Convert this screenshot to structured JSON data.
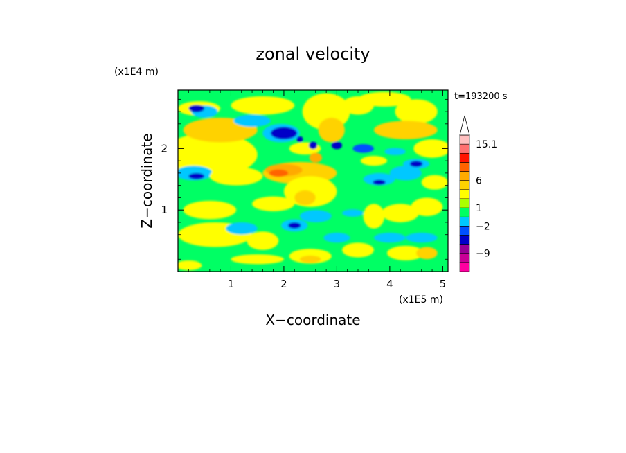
{
  "chart_data": {
    "type": "heatmap",
    "title": "zonal velocity",
    "xlabel": "X−coordinate",
    "ylabel": "Z−coordinate",
    "x_unit": "(x1E5 m)",
    "y_unit": "(x1E4 m)",
    "time_label": "t=193200 s",
    "xlim": [
      0,
      5.1
    ],
    "ylim": [
      0,
      2.95
    ],
    "x_ticks": [
      "1",
      "2",
      "3",
      "4",
      "5"
    ],
    "y_ticks": [
      "1",
      "2"
    ],
    "colorbar": {
      "tick_labels": [
        "15.1",
        "6",
        "1",
        "−2",
        "−9"
      ],
      "colors": [
        "#ff00a0",
        "#c80096",
        "#960096",
        "#0000c8",
        "#0050ff",
        "#00c8ff",
        "#00ff64",
        "#aaff00",
        "#ffff00",
        "#ffd200",
        "#ffaa00",
        "#ff6400",
        "#ff1400",
        "#ff7070",
        "#ffc0c0",
        "#ffffff"
      ],
      "extend": "max"
    },
    "fields": {
      "background": "#00ff64",
      "blobs": [
        {
          "x": 0.6,
          "y": 1.9,
          "rx": 0.9,
          "ry": 0.35,
          "c": "#ffff00"
        },
        {
          "x": 0.8,
          "y": 2.3,
          "rx": 0.7,
          "ry": 0.2,
          "c": "#ffd200"
        },
        {
          "x": 0.4,
          "y": 2.65,
          "rx": 0.4,
          "ry": 0.12,
          "c": "#ffff00"
        },
        {
          "x": 1.6,
          "y": 2.7,
          "rx": 0.6,
          "ry": 0.15,
          "c": "#ffff00"
        },
        {
          "x": 0.5,
          "y": 2.6,
          "rx": 0.25,
          "ry": 0.1,
          "c": "#00c8ff"
        },
        {
          "x": 0.35,
          "y": 2.65,
          "rx": 0.15,
          "ry": 0.06,
          "c": "#0000c8"
        },
        {
          "x": 0.3,
          "y": 1.6,
          "rx": 0.35,
          "ry": 0.12,
          "c": "#00c8ff"
        },
        {
          "x": 0.35,
          "y": 1.55,
          "rx": 0.15,
          "ry": 0.05,
          "c": "#0000c8"
        },
        {
          "x": 1.1,
          "y": 1.55,
          "rx": 0.5,
          "ry": 0.15,
          "c": "#ffff00"
        },
        {
          "x": 1.4,
          "y": 2.45,
          "rx": 0.35,
          "ry": 0.1,
          "c": "#00c8ff"
        },
        {
          "x": 1.95,
          "y": 2.25,
          "rx": 0.35,
          "ry": 0.15,
          "c": "#00c8ff"
        },
        {
          "x": 2.0,
          "y": 2.25,
          "rx": 0.25,
          "ry": 0.1,
          "c": "#0000c8"
        },
        {
          "x": 2.8,
          "y": 2.6,
          "rx": 0.45,
          "ry": 0.3,
          "c": "#ffff00"
        },
        {
          "x": 2.9,
          "y": 2.3,
          "rx": 0.25,
          "ry": 0.2,
          "c": "#ffd200"
        },
        {
          "x": 2.4,
          "y": 2.0,
          "rx": 0.3,
          "ry": 0.1,
          "c": "#ffff00"
        },
        {
          "x": 2.3,
          "y": 1.6,
          "rx": 0.7,
          "ry": 0.18,
          "c": "#ffd200"
        },
        {
          "x": 2.0,
          "y": 1.65,
          "rx": 0.35,
          "ry": 0.1,
          "c": "#ffaa00"
        },
        {
          "x": 1.9,
          "y": 1.6,
          "rx": 0.18,
          "ry": 0.06,
          "c": "#ff6400"
        },
        {
          "x": 2.5,
          "y": 1.3,
          "rx": 0.5,
          "ry": 0.25,
          "c": "#ffff00"
        },
        {
          "x": 2.4,
          "y": 1.2,
          "rx": 0.2,
          "ry": 0.12,
          "c": "#ffd200"
        },
        {
          "x": 2.6,
          "y": 1.85,
          "rx": 0.12,
          "ry": 0.08,
          "c": "#ffaa00"
        },
        {
          "x": 2.55,
          "y": 2.05,
          "rx": 0.08,
          "ry": 0.06,
          "c": "#0000c8"
        },
        {
          "x": 3.0,
          "y": 2.05,
          "rx": 0.1,
          "ry": 0.06,
          "c": "#0000c8"
        },
        {
          "x": 2.3,
          "y": 2.15,
          "rx": 0.06,
          "ry": 0.05,
          "c": "#0000c8"
        },
        {
          "x": 3.4,
          "y": 2.7,
          "rx": 0.3,
          "ry": 0.15,
          "c": "#ffff00"
        },
        {
          "x": 3.9,
          "y": 2.8,
          "rx": 0.5,
          "ry": 0.12,
          "c": "#ffff00"
        },
        {
          "x": 4.5,
          "y": 2.6,
          "rx": 0.4,
          "ry": 0.2,
          "c": "#ffff00"
        },
        {
          "x": 4.3,
          "y": 2.3,
          "rx": 0.6,
          "ry": 0.15,
          "c": "#ffd200"
        },
        {
          "x": 4.5,
          "y": 1.75,
          "rx": 0.25,
          "ry": 0.08,
          "c": "#00c8ff"
        },
        {
          "x": 4.5,
          "y": 1.75,
          "rx": 0.12,
          "ry": 0.05,
          "c": "#0000c8"
        },
        {
          "x": 4.8,
          "y": 2.0,
          "rx": 0.35,
          "ry": 0.15,
          "c": "#ffff00"
        },
        {
          "x": 4.85,
          "y": 1.45,
          "rx": 0.25,
          "ry": 0.12,
          "c": "#ffff00"
        },
        {
          "x": 4.3,
          "y": 1.6,
          "rx": 0.3,
          "ry": 0.12,
          "c": "#00c8ff"
        },
        {
          "x": 3.8,
          "y": 1.5,
          "rx": 0.3,
          "ry": 0.1,
          "c": "#00c8ff"
        },
        {
          "x": 3.8,
          "y": 1.45,
          "rx": 0.12,
          "ry": 0.04,
          "c": "#0000c8"
        },
        {
          "x": 3.7,
          "y": 1.8,
          "rx": 0.25,
          "ry": 0.08,
          "c": "#ffff00"
        },
        {
          "x": 3.5,
          "y": 2.0,
          "rx": 0.2,
          "ry": 0.07,
          "c": "#0050ff"
        },
        {
          "x": 4.1,
          "y": 1.95,
          "rx": 0.2,
          "ry": 0.06,
          "c": "#00c8ff"
        },
        {
          "x": 4.7,
          "y": 1.05,
          "rx": 0.3,
          "ry": 0.15,
          "c": "#ffff00"
        },
        {
          "x": 4.2,
          "y": 0.95,
          "rx": 0.35,
          "ry": 0.15,
          "c": "#ffff00"
        },
        {
          "x": 3.7,
          "y": 0.9,
          "rx": 0.2,
          "ry": 0.2,
          "c": "#ffff00"
        },
        {
          "x": 1.8,
          "y": 1.1,
          "rx": 0.4,
          "ry": 0.12,
          "c": "#ffff00"
        },
        {
          "x": 0.6,
          "y": 1.0,
          "rx": 0.5,
          "ry": 0.15,
          "c": "#ffff00"
        },
        {
          "x": 0.7,
          "y": 0.6,
          "rx": 0.7,
          "ry": 0.2,
          "c": "#ffff00"
        },
        {
          "x": 1.6,
          "y": 0.5,
          "rx": 0.3,
          "ry": 0.15,
          "c": "#ffff00"
        },
        {
          "x": 1.2,
          "y": 0.7,
          "rx": 0.3,
          "ry": 0.1,
          "c": "#00c8ff"
        },
        {
          "x": 2.2,
          "y": 0.75,
          "rx": 0.25,
          "ry": 0.1,
          "c": "#00c8ff"
        },
        {
          "x": 2.2,
          "y": 0.75,
          "rx": 0.12,
          "ry": 0.05,
          "c": "#0000c8"
        },
        {
          "x": 2.6,
          "y": 0.9,
          "rx": 0.3,
          "ry": 0.1,
          "c": "#00c8ff"
        },
        {
          "x": 3.3,
          "y": 0.95,
          "rx": 0.2,
          "ry": 0.06,
          "c": "#00c8ff"
        },
        {
          "x": 1.5,
          "y": 0.2,
          "rx": 0.5,
          "ry": 0.08,
          "c": "#ffff00"
        },
        {
          "x": 2.5,
          "y": 0.25,
          "rx": 0.4,
          "ry": 0.12,
          "c": "#ffff00"
        },
        {
          "x": 2.5,
          "y": 0.2,
          "rx": 0.2,
          "ry": 0.06,
          "c": "#ffd200"
        },
        {
          "x": 3.4,
          "y": 0.35,
          "rx": 0.3,
          "ry": 0.12,
          "c": "#ffff00"
        },
        {
          "x": 4.3,
          "y": 0.3,
          "rx": 0.35,
          "ry": 0.12,
          "c": "#ffff00"
        },
        {
          "x": 4.7,
          "y": 0.3,
          "rx": 0.2,
          "ry": 0.1,
          "c": "#ffd200"
        },
        {
          "x": 4.0,
          "y": 0.55,
          "rx": 0.3,
          "ry": 0.08,
          "c": "#00c8ff"
        },
        {
          "x": 4.6,
          "y": 0.55,
          "rx": 0.3,
          "ry": 0.08,
          "c": "#00c8ff"
        },
        {
          "x": 3.0,
          "y": 0.55,
          "rx": 0.25,
          "ry": 0.08,
          "c": "#00c8ff"
        },
        {
          "x": 0.2,
          "y": 0.1,
          "rx": 0.25,
          "ry": 0.08,
          "c": "#ffff00"
        }
      ]
    }
  }
}
